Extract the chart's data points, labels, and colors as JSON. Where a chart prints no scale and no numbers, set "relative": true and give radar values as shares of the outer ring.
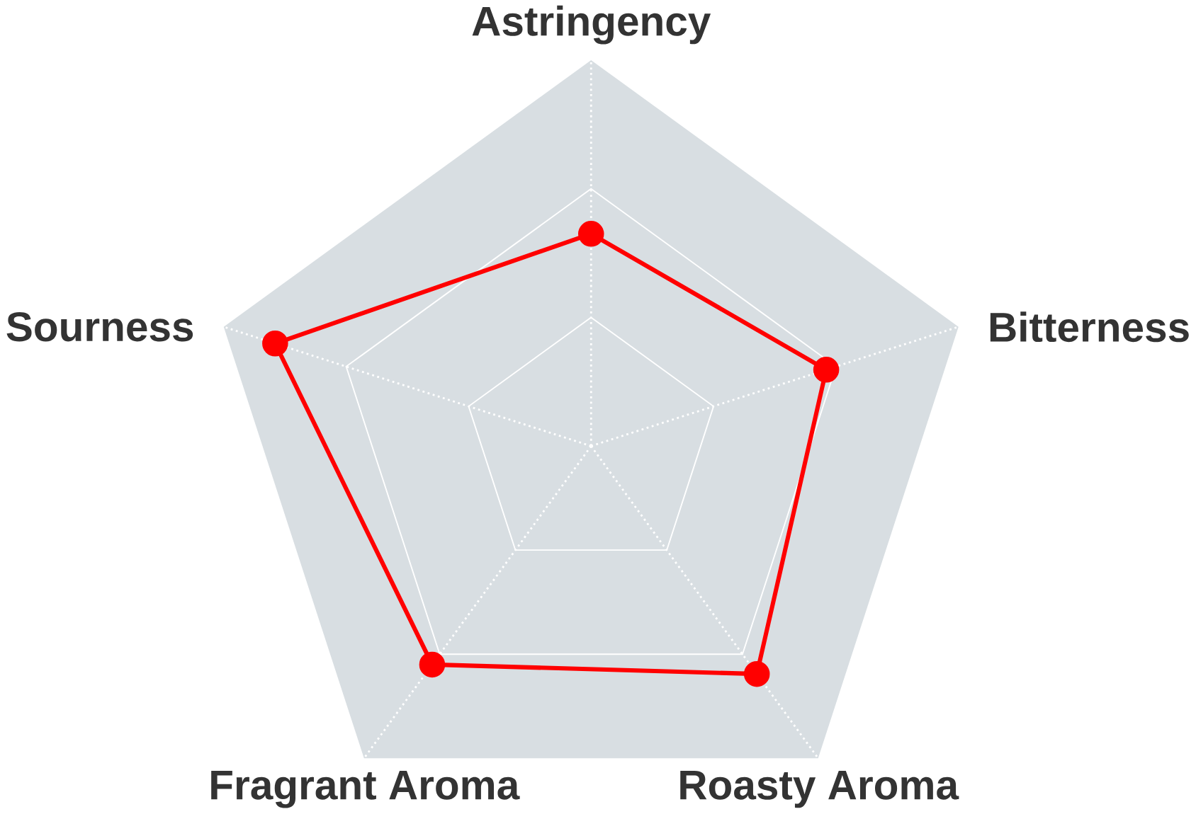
{
  "chart_data": {
    "type": "radar",
    "relative": true,
    "grid": true,
    "marker": "circle",
    "categories": [
      "Astringency",
      "Bitterness",
      "Roasty Aroma",
      "Fragrant Aroma",
      "Sourness"
    ],
    "series": [
      {
        "color": "#ff0000",
        "values": [
          0.55,
          0.64,
          0.73,
          0.7,
          0.86
        ]
      }
    ]
  }
}
